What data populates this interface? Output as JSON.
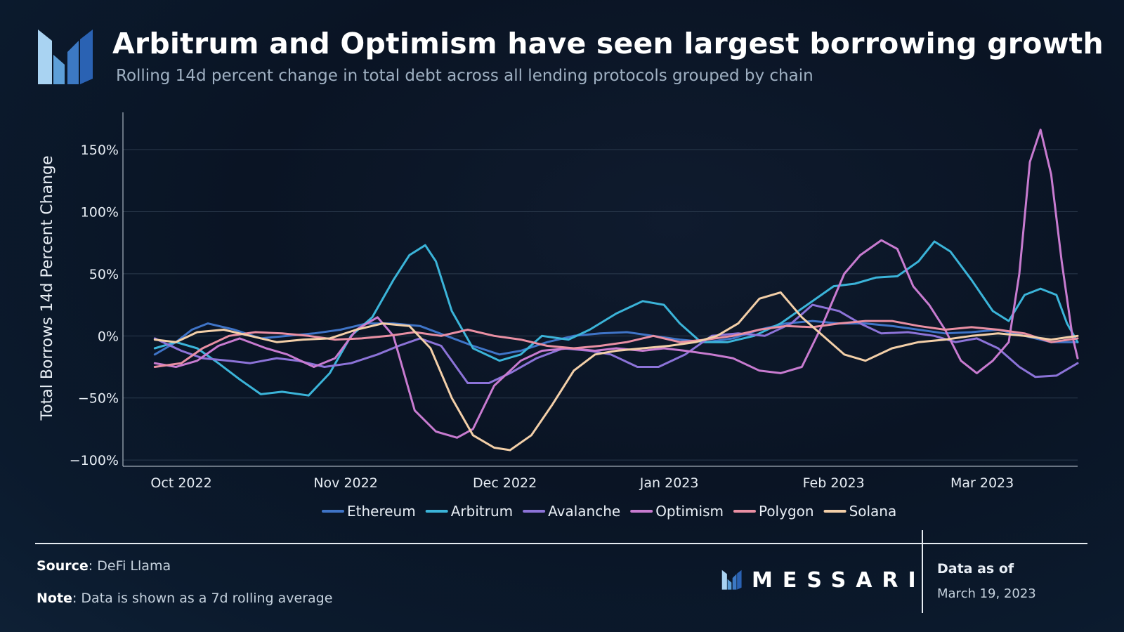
{
  "header": {
    "title": "Arbitrum and Optimism have seen largest borrowing growth",
    "subtitle": "Rolling 14d percent change in total debt across all lending protocols grouped by chain"
  },
  "footer": {
    "source_label": "Source",
    "source_value": "DeFi Llama",
    "note_label": "Note",
    "note_value": "Data is shown as a 7d rolling average",
    "brand": "MESSARI",
    "asof_label": "Data as of",
    "asof_date": "March 19, 2023"
  },
  "colors": {
    "Ethereum": "#3f74c7",
    "Arbitrum": "#3bb4d9",
    "Avalanche": "#8c73d8",
    "Optimism": "#c87bd0",
    "Polygon": "#e98fa3",
    "Solana": "#f3cfa8",
    "grid": "#2b3a4d",
    "axis_line": "#c8d2dc"
  },
  "chart_data": {
    "type": "line",
    "title": "Arbitrum and Optimism have seen largest borrowing growth",
    "ylabel": "Total Borrows 14d Percent Change",
    "xlabel": "",
    "xlim": [
      "2022-09-20",
      "2023-03-19"
    ],
    "ylim": [
      -105,
      180
    ],
    "yticks": [
      -100,
      -50,
      0,
      50,
      100,
      150
    ],
    "ytick_labels": [
      "−100%",
      "−50%",
      "0%",
      "50%",
      "100%",
      "150%"
    ],
    "xticks": [
      "2022-10-01",
      "2022-11-01",
      "2022-12-01",
      "2023-01-01",
      "2023-02-01",
      "2023-03-01"
    ],
    "xtick_labels": [
      "Oct 2022",
      "Nov 2022",
      "Dec 2022",
      "Jan 2023",
      "Feb 2023",
      "Mar 2023"
    ],
    "grid": "horizontal",
    "legend_position": "bottom-center",
    "series": [
      {
        "name": "Ethereum",
        "points": [
          [
            "2022-09-26",
            -15
          ],
          [
            "2022-09-30",
            -5
          ],
          [
            "2022-10-03",
            5
          ],
          [
            "2022-10-06",
            10
          ],
          [
            "2022-10-11",
            5
          ],
          [
            "2022-10-16",
            -2
          ],
          [
            "2022-10-21",
            0
          ],
          [
            "2022-10-26",
            2
          ],
          [
            "2022-10-31",
            5
          ],
          [
            "2022-11-05",
            10
          ],
          [
            "2022-11-10",
            10
          ],
          [
            "2022-11-15",
            8
          ],
          [
            "2022-11-20",
            0
          ],
          [
            "2022-11-25",
            -8
          ],
          [
            "2022-11-30",
            -15
          ],
          [
            "2022-12-04",
            -12
          ],
          [
            "2022-12-09",
            -5
          ],
          [
            "2022-12-14",
            0
          ],
          [
            "2022-12-19",
            2
          ],
          [
            "2022-12-24",
            3
          ],
          [
            "2022-12-29",
            0
          ],
          [
            "2023-01-03",
            -3
          ],
          [
            "2023-01-08",
            -5
          ],
          [
            "2023-01-13",
            -2
          ],
          [
            "2023-01-18",
            5
          ],
          [
            "2023-01-23",
            10
          ],
          [
            "2023-01-28",
            12
          ],
          [
            "2023-02-02",
            10
          ],
          [
            "2023-02-07",
            10
          ],
          [
            "2023-02-12",
            8
          ],
          [
            "2023-02-17",
            5
          ],
          [
            "2023-02-22",
            2
          ],
          [
            "2023-02-27",
            3
          ],
          [
            "2023-03-04",
            5
          ],
          [
            "2023-03-09",
            0
          ],
          [
            "2023-03-14",
            -5
          ],
          [
            "2023-03-19",
            -5
          ]
        ]
      },
      {
        "name": "Arbitrum",
        "points": [
          [
            "2022-09-26",
            -10
          ],
          [
            "2022-09-30",
            -5
          ],
          [
            "2022-10-04",
            -10
          ],
          [
            "2022-10-08",
            -22
          ],
          [
            "2022-10-12",
            -35
          ],
          [
            "2022-10-16",
            -47
          ],
          [
            "2022-10-20",
            -45
          ],
          [
            "2022-10-25",
            -48
          ],
          [
            "2022-10-29",
            -30
          ],
          [
            "2022-11-02",
            0
          ],
          [
            "2022-11-06",
            15
          ],
          [
            "2022-11-10",
            45
          ],
          [
            "2022-11-13",
            65
          ],
          [
            "2022-11-16",
            73
          ],
          [
            "2022-11-18",
            60
          ],
          [
            "2022-11-21",
            20
          ],
          [
            "2022-11-25",
            -10
          ],
          [
            "2022-11-30",
            -20
          ],
          [
            "2022-12-04",
            -15
          ],
          [
            "2022-12-08",
            0
          ],
          [
            "2022-12-13",
            -3
          ],
          [
            "2022-12-17",
            5
          ],
          [
            "2022-12-22",
            18
          ],
          [
            "2022-12-27",
            28
          ],
          [
            "2022-12-31",
            25
          ],
          [
            "2023-01-03",
            10
          ],
          [
            "2023-01-07",
            -5
          ],
          [
            "2023-01-12",
            -5
          ],
          [
            "2023-01-17",
            0
          ],
          [
            "2023-01-22",
            10
          ],
          [
            "2023-01-27",
            25
          ],
          [
            "2023-02-01",
            40
          ],
          [
            "2023-02-05",
            42
          ],
          [
            "2023-02-09",
            47
          ],
          [
            "2023-02-13",
            48
          ],
          [
            "2023-02-17",
            60
          ],
          [
            "2023-02-20",
            76
          ],
          [
            "2023-02-23",
            68
          ],
          [
            "2023-02-27",
            45
          ],
          [
            "2023-03-03",
            20
          ],
          [
            "2023-03-06",
            12
          ],
          [
            "2023-03-09",
            33
          ],
          [
            "2023-03-12",
            38
          ],
          [
            "2023-03-15",
            33
          ],
          [
            "2023-03-17",
            10
          ],
          [
            "2023-03-19",
            -5
          ]
        ]
      },
      {
        "name": "Avalanche",
        "points": [
          [
            "2022-09-26",
            -2
          ],
          [
            "2022-10-01",
            -12
          ],
          [
            "2022-10-05",
            -18
          ],
          [
            "2022-10-10",
            -20
          ],
          [
            "2022-10-14",
            -22
          ],
          [
            "2022-10-19",
            -18
          ],
          [
            "2022-10-23",
            -20
          ],
          [
            "2022-10-28",
            -25
          ],
          [
            "2022-11-02",
            -22
          ],
          [
            "2022-11-07",
            -15
          ],
          [
            "2022-11-11",
            -8
          ],
          [
            "2022-11-15",
            -2
          ],
          [
            "2022-11-19",
            -8
          ],
          [
            "2022-11-24",
            -38
          ],
          [
            "2022-11-28",
            -38
          ],
          [
            "2022-12-02",
            -30
          ],
          [
            "2022-12-07",
            -18
          ],
          [
            "2022-12-12",
            -10
          ],
          [
            "2022-12-17",
            -12
          ],
          [
            "2022-12-21",
            -15
          ],
          [
            "2022-12-26",
            -25
          ],
          [
            "2022-12-30",
            -25
          ],
          [
            "2023-01-04",
            -15
          ],
          [
            "2023-01-09",
            0
          ],
          [
            "2023-01-14",
            2
          ],
          [
            "2023-01-19",
            0
          ],
          [
            "2023-01-24",
            10
          ],
          [
            "2023-01-28",
            25
          ],
          [
            "2023-02-02",
            20
          ],
          [
            "2023-02-06",
            10
          ],
          [
            "2023-02-10",
            2
          ],
          [
            "2023-02-15",
            3
          ],
          [
            "2023-02-20",
            0
          ],
          [
            "2023-02-24",
            -5
          ],
          [
            "2023-02-28",
            -2
          ],
          [
            "2023-03-04",
            -10
          ],
          [
            "2023-03-08",
            -25
          ],
          [
            "2023-03-11",
            -33
          ],
          [
            "2023-03-15",
            -32
          ],
          [
            "2023-03-19",
            -22
          ]
        ]
      },
      {
        "name": "Optimism",
        "points": [
          [
            "2022-09-26",
            -22
          ],
          [
            "2022-09-30",
            -25
          ],
          [
            "2022-10-04",
            -20
          ],
          [
            "2022-10-08",
            -8
          ],
          [
            "2022-10-12",
            -2
          ],
          [
            "2022-10-17",
            -10
          ],
          [
            "2022-10-21",
            -15
          ],
          [
            "2022-10-26",
            -25
          ],
          [
            "2022-10-30",
            -18
          ],
          [
            "2022-11-03",
            5
          ],
          [
            "2022-11-07",
            15
          ],
          [
            "2022-11-10",
            0
          ],
          [
            "2022-11-14",
            -60
          ],
          [
            "2022-11-18",
            -77
          ],
          [
            "2022-11-22",
            -82
          ],
          [
            "2022-11-25",
            -75
          ],
          [
            "2022-11-29",
            -40
          ],
          [
            "2022-12-04",
            -20
          ],
          [
            "2022-12-08",
            -12
          ],
          [
            "2022-12-13",
            -10
          ],
          [
            "2022-12-18",
            -12
          ],
          [
            "2022-12-22",
            -10
          ],
          [
            "2022-12-27",
            -12
          ],
          [
            "2022-12-31",
            -10
          ],
          [
            "2023-01-04",
            -12
          ],
          [
            "2023-01-09",
            -15
          ],
          [
            "2023-01-13",
            -18
          ],
          [
            "2023-01-18",
            -28
          ],
          [
            "2023-01-22",
            -30
          ],
          [
            "2023-01-26",
            -25
          ],
          [
            "2023-01-30",
            10
          ],
          [
            "2023-02-03",
            50
          ],
          [
            "2023-02-06",
            65
          ],
          [
            "2023-02-10",
            77
          ],
          [
            "2023-02-13",
            70
          ],
          [
            "2023-02-16",
            40
          ],
          [
            "2023-02-19",
            25
          ],
          [
            "2023-02-22",
            5
          ],
          [
            "2023-02-25",
            -20
          ],
          [
            "2023-02-28",
            -30
          ],
          [
            "2023-03-03",
            -20
          ],
          [
            "2023-03-06",
            -5
          ],
          [
            "2023-03-08",
            50
          ],
          [
            "2023-03-10",
            140
          ],
          [
            "2023-03-12",
            166
          ],
          [
            "2023-03-14",
            130
          ],
          [
            "2023-03-16",
            60
          ],
          [
            "2023-03-18",
            0
          ],
          [
            "2023-03-19",
            -18
          ]
        ]
      },
      {
        "name": "Polygon",
        "points": [
          [
            "2022-09-26",
            -25
          ],
          [
            "2022-10-01",
            -22
          ],
          [
            "2022-10-05",
            -10
          ],
          [
            "2022-10-10",
            0
          ],
          [
            "2022-10-15",
            3
          ],
          [
            "2022-10-20",
            2
          ],
          [
            "2022-10-25",
            0
          ],
          [
            "2022-10-30",
            -3
          ],
          [
            "2022-11-04",
            -2
          ],
          [
            "2022-11-09",
            0
          ],
          [
            "2022-11-14",
            3
          ],
          [
            "2022-11-19",
            0
          ],
          [
            "2022-11-24",
            5
          ],
          [
            "2022-11-29",
            0
          ],
          [
            "2022-12-04",
            -3
          ],
          [
            "2022-12-09",
            -8
          ],
          [
            "2022-12-14",
            -10
          ],
          [
            "2022-12-19",
            -8
          ],
          [
            "2022-12-24",
            -5
          ],
          [
            "2022-12-29",
            0
          ],
          [
            "2023-01-03",
            -5
          ],
          [
            "2023-01-08",
            -3
          ],
          [
            "2023-01-13",
            0
          ],
          [
            "2023-01-18",
            5
          ],
          [
            "2023-01-23",
            8
          ],
          [
            "2023-01-28",
            7
          ],
          [
            "2023-02-02",
            10
          ],
          [
            "2023-02-07",
            12
          ],
          [
            "2023-02-12",
            12
          ],
          [
            "2023-02-17",
            8
          ],
          [
            "2023-02-22",
            5
          ],
          [
            "2023-02-27",
            7
          ],
          [
            "2023-03-04",
            5
          ],
          [
            "2023-03-09",
            2
          ],
          [
            "2023-03-14",
            -5
          ],
          [
            "2023-03-19",
            -2
          ]
        ]
      },
      {
        "name": "Solana",
        "points": [
          [
            "2022-09-26",
            -3
          ],
          [
            "2022-09-30",
            -5
          ],
          [
            "2022-10-04",
            3
          ],
          [
            "2022-10-09",
            5
          ],
          [
            "2022-10-14",
            0
          ],
          [
            "2022-10-19",
            -5
          ],
          [
            "2022-10-24",
            -3
          ],
          [
            "2022-10-29",
            -2
          ],
          [
            "2022-11-03",
            5
          ],
          [
            "2022-11-08",
            10
          ],
          [
            "2022-11-13",
            8
          ],
          [
            "2022-11-17",
            -10
          ],
          [
            "2022-11-21",
            -50
          ],
          [
            "2022-11-25",
            -80
          ],
          [
            "2022-11-29",
            -90
          ],
          [
            "2022-12-02",
            -92
          ],
          [
            "2022-12-06",
            -80
          ],
          [
            "2022-12-10",
            -55
          ],
          [
            "2022-12-14",
            -28
          ],
          [
            "2022-12-18",
            -15
          ],
          [
            "2022-12-22",
            -12
          ],
          [
            "2022-12-27",
            -10
          ],
          [
            "2023-01-01",
            -8
          ],
          [
            "2023-01-06",
            -5
          ],
          [
            "2023-01-10",
            0
          ],
          [
            "2023-01-14",
            10
          ],
          [
            "2023-01-18",
            30
          ],
          [
            "2023-01-22",
            35
          ],
          [
            "2023-01-26",
            15
          ],
          [
            "2023-01-30",
            0
          ],
          [
            "2023-02-03",
            -15
          ],
          [
            "2023-02-07",
            -20
          ],
          [
            "2023-02-12",
            -10
          ],
          [
            "2023-02-17",
            -5
          ],
          [
            "2023-02-22",
            -3
          ],
          [
            "2023-02-27",
            0
          ],
          [
            "2023-03-04",
            2
          ],
          [
            "2023-03-09",
            0
          ],
          [
            "2023-03-14",
            -3
          ],
          [
            "2023-03-19",
            0
          ]
        ]
      }
    ]
  }
}
